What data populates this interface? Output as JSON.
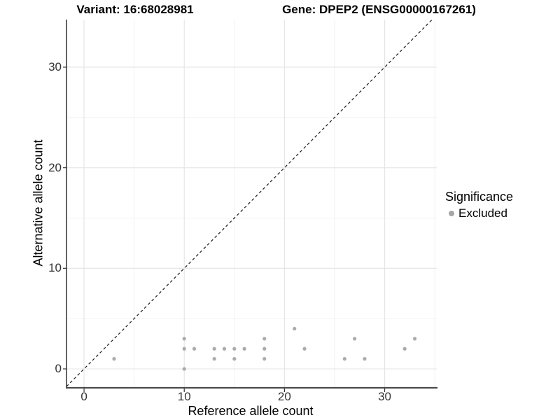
{
  "figure": {
    "title_left": "Variant: 16:68028981",
    "title_right": "Gene: DPEP2 (ENSG00000167261)"
  },
  "chart_data": {
    "type": "scatter",
    "title_left": "Variant: 16:68028981",
    "title_right": "Gene: DPEP2 (ENSG00000167261)",
    "xlabel": "Reference allele count",
    "ylabel": "Alternative allele count",
    "x_range": [
      -1.75,
      35.2
    ],
    "y_range": [
      -1.81,
      34.73
    ],
    "x_major_ticks": [
      0,
      10,
      20,
      30
    ],
    "y_major_ticks": [
      0,
      10,
      20,
      30
    ],
    "x_minor_ticks": [
      5,
      15,
      25,
      35
    ],
    "y_minor_ticks": [
      5,
      15,
      25
    ],
    "grid": true,
    "identity_line": {
      "style": "dashed",
      "color": "#1a1a1a",
      "from": -1.75,
      "to": 34.73
    },
    "legend": {
      "title": "Significance",
      "position": "right",
      "items": [
        {
          "label": "Excluded",
          "color": "#a6a6a6"
        }
      ]
    },
    "series": [
      {
        "name": "Excluded",
        "color": "#a6a6a6",
        "points": [
          [
            3,
            1
          ],
          [
            10,
            0
          ],
          [
            10,
            2
          ],
          [
            10,
            3
          ],
          [
            11,
            2
          ],
          [
            13,
            1
          ],
          [
            13,
            2
          ],
          [
            14,
            2
          ],
          [
            15,
            1
          ],
          [
            15,
            2
          ],
          [
            16,
            2
          ],
          [
            18,
            1
          ],
          [
            18,
            2
          ],
          [
            18,
            3
          ],
          [
            21,
            4
          ],
          [
            22,
            2
          ],
          [
            26,
            1
          ],
          [
            27,
            3
          ],
          [
            28,
            1
          ],
          [
            32,
            2
          ],
          [
            33,
            3
          ]
        ]
      }
    ],
    "colors": {
      "point": "#a6a6a6",
      "grid_major": "#e4e4e4",
      "grid_minor": "#f2f2f2",
      "axis_line_left": "#111111",
      "axis_line_bottom": "#4a4a4a",
      "tick_label": "#333333",
      "background": "#ffffff"
    }
  }
}
